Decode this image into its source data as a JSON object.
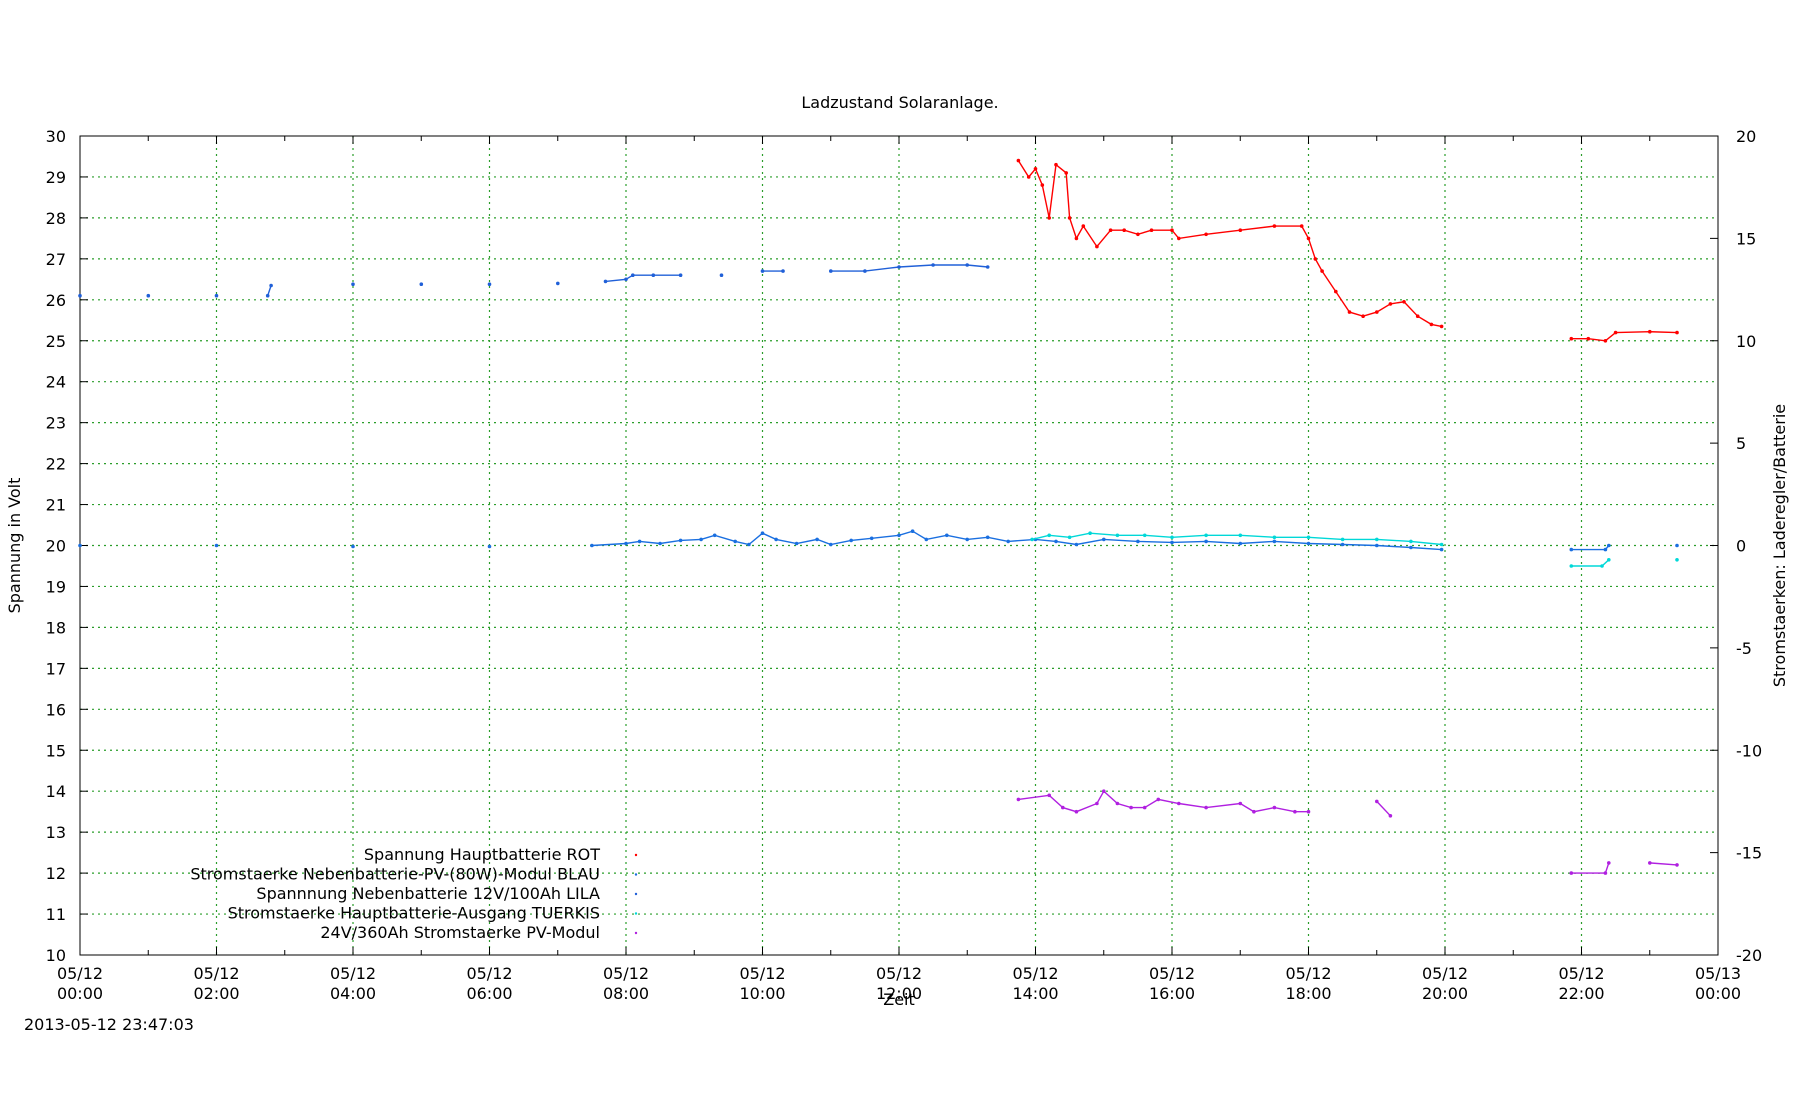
{
  "chart_data": {
    "type": "scatter",
    "title": "Ladzustand Solaranlage.",
    "xlabel": "Zeit",
    "ylabel": "Spannung in Volt",
    "y2label": "Stromstaerken: Laderegler/Batterie",
    "timestamp": "2013-05-12 23:47:03",
    "xlim": [
      0,
      24
    ],
    "ylim": [
      10,
      30
    ],
    "y2lim": [
      -20,
      20
    ],
    "grid": true,
    "legend_position": "bottom-left",
    "x_ticks": [
      {
        "pos": 0,
        "l1": "05/12",
        "l2": "00:00"
      },
      {
        "pos": 2,
        "l1": "05/12",
        "l2": "02:00"
      },
      {
        "pos": 4,
        "l1": "05/12",
        "l2": "04:00"
      },
      {
        "pos": 6,
        "l1": "05/12",
        "l2": "06:00"
      },
      {
        "pos": 8,
        "l1": "05/12",
        "l2": "08:00"
      },
      {
        "pos": 10,
        "l1": "05/12",
        "l2": "10:00"
      },
      {
        "pos": 12,
        "l1": "05/12",
        "l2": "12:00"
      },
      {
        "pos": 14,
        "l1": "05/12",
        "l2": "14:00"
      },
      {
        "pos": 16,
        "l1": "05/12",
        "l2": "16:00"
      },
      {
        "pos": 18,
        "l1": "05/12",
        "l2": "18:00"
      },
      {
        "pos": 20,
        "l1": "05/12",
        "l2": "20:00"
      },
      {
        "pos": 22,
        "l1": "05/12",
        "l2": "22:00"
      },
      {
        "pos": 24,
        "l1": "05/13",
        "l2": "00:00"
      }
    ],
    "y_ticks": [
      10,
      11,
      12,
      13,
      14,
      15,
      16,
      17,
      18,
      19,
      20,
      21,
      22,
      23,
      24,
      25,
      26,
      27,
      28,
      29,
      30
    ],
    "y2_ticks": [
      -20,
      -15,
      -10,
      -5,
      0,
      5,
      10,
      15,
      20
    ],
    "series": [
      {
        "name": "Spannung Hauptbatterie ROT",
        "color": "#ff0000",
        "axis": "y",
        "points": [
          [
            13.75,
            29.4
          ],
          [
            13.9,
            29.0
          ],
          [
            14.0,
            29.2
          ],
          [
            14.1,
            28.8
          ],
          [
            14.2,
            28.0
          ],
          [
            14.3,
            29.3
          ],
          [
            14.45,
            29.1
          ],
          [
            14.5,
            28.0
          ],
          [
            14.6,
            27.5
          ],
          [
            14.7,
            27.8
          ],
          [
            14.9,
            27.3
          ],
          [
            15.1,
            27.7
          ],
          [
            15.3,
            27.7
          ],
          [
            15.5,
            27.6
          ],
          [
            15.7,
            27.7
          ],
          [
            16.0,
            27.7
          ],
          [
            16.1,
            27.5
          ],
          [
            16.5,
            27.6
          ],
          [
            17.0,
            27.7
          ],
          [
            17.5,
            27.8
          ],
          [
            17.9,
            27.8
          ],
          [
            18.0,
            27.5
          ],
          [
            18.1,
            27.0
          ],
          [
            18.2,
            26.7
          ],
          [
            18.4,
            26.2
          ],
          [
            18.6,
            25.7
          ],
          [
            18.8,
            25.6
          ],
          [
            19.0,
            25.7
          ],
          [
            19.2,
            25.9
          ],
          [
            19.4,
            25.95
          ],
          [
            19.6,
            25.6
          ],
          [
            19.8,
            25.4
          ],
          [
            19.95,
            25.35
          ],
          [
            21.85,
            25.05
          ],
          [
            22.1,
            25.05
          ],
          [
            22.35,
            25.0
          ],
          [
            22.5,
            25.2
          ],
          [
            23.0,
            25.22
          ],
          [
            23.4,
            25.2
          ]
        ]
      },
      {
        "name": "Stromstaerke Nebenbatterie-PV-(80W)-Modul BLAU",
        "color": "#1a6fe0",
        "axis": "y2",
        "points": [
          [
            0.0,
            0.0
          ],
          [
            2.0,
            0.0
          ],
          [
            4.0,
            -0.05
          ],
          [
            6.0,
            -0.05
          ],
          [
            7.5,
            0.0
          ],
          [
            8.0,
            0.1
          ],
          [
            8.2,
            0.2
          ],
          [
            8.5,
            0.1
          ],
          [
            8.8,
            0.25
          ],
          [
            9.1,
            0.3
          ],
          [
            9.3,
            0.5
          ],
          [
            9.6,
            0.2
          ],
          [
            9.8,
            0.05
          ],
          [
            10.0,
            0.6
          ],
          [
            10.2,
            0.3
          ],
          [
            10.5,
            0.1
          ],
          [
            10.8,
            0.3
          ],
          [
            11.0,
            0.05
          ],
          [
            11.3,
            0.25
          ],
          [
            11.6,
            0.35
          ],
          [
            12.0,
            0.5
          ],
          [
            12.2,
            0.7
          ],
          [
            12.4,
            0.3
          ],
          [
            12.7,
            0.5
          ],
          [
            13.0,
            0.3
          ],
          [
            13.3,
            0.4
          ],
          [
            13.6,
            0.2
          ],
          [
            14.0,
            0.3
          ],
          [
            14.3,
            0.2
          ],
          [
            14.6,
            0.05
          ],
          [
            15.0,
            0.3
          ],
          [
            15.5,
            0.2
          ],
          [
            16.0,
            0.15
          ],
          [
            16.5,
            0.2
          ],
          [
            17.0,
            0.1
          ],
          [
            17.5,
            0.2
          ],
          [
            18.0,
            0.1
          ],
          [
            18.5,
            0.05
          ],
          [
            19.0,
            0.0
          ],
          [
            19.5,
            -0.1
          ],
          [
            19.95,
            -0.2
          ],
          [
            21.85,
            -0.2
          ],
          [
            22.35,
            -0.2
          ],
          [
            22.4,
            0.0
          ],
          [
            23.4,
            0.0
          ]
        ]
      },
      {
        "name": "Spannnung Nebenbatterie 12V/100Ah LILA",
        "color": "#2060d8",
        "axis": "y",
        "points": [
          [
            0.0,
            26.1
          ],
          [
            1.0,
            26.1
          ],
          [
            2.0,
            26.1
          ],
          [
            2.75,
            26.1
          ],
          [
            2.8,
            26.35
          ],
          [
            4.0,
            26.38
          ],
          [
            5.0,
            26.38
          ],
          [
            6.0,
            26.38
          ],
          [
            7.0,
            26.4
          ],
          [
            7.7,
            26.45
          ],
          [
            8.0,
            26.5
          ],
          [
            8.1,
            26.6
          ],
          [
            8.4,
            26.6
          ],
          [
            8.8,
            26.6
          ],
          [
            9.4,
            26.6
          ],
          [
            10.0,
            26.7
          ],
          [
            10.3,
            26.7
          ],
          [
            11.0,
            26.7
          ],
          [
            11.5,
            26.7
          ],
          [
            12.0,
            26.8
          ],
          [
            12.5,
            26.85
          ],
          [
            13.0,
            26.85
          ],
          [
            13.3,
            26.8
          ]
        ]
      },
      {
        "name": "Stromstaerke Hauptbatterie-Ausgang TUERKIS",
        "color": "#00d8d8",
        "axis": "y2",
        "points": [
          [
            13.95,
            0.3
          ],
          [
            14.2,
            0.5
          ],
          [
            14.5,
            0.4
          ],
          [
            14.8,
            0.6
          ],
          [
            15.2,
            0.5
          ],
          [
            15.6,
            0.5
          ],
          [
            16.0,
            0.4
          ],
          [
            16.5,
            0.5
          ],
          [
            17.0,
            0.5
          ],
          [
            17.5,
            0.4
          ],
          [
            18.0,
            0.4
          ],
          [
            18.5,
            0.3
          ],
          [
            19.0,
            0.3
          ],
          [
            19.5,
            0.2
          ],
          [
            19.95,
            0.05
          ],
          [
            21.85,
            -1.0
          ],
          [
            22.3,
            -1.0
          ],
          [
            22.4,
            -0.7
          ],
          [
            23.4,
            -0.7
          ]
        ]
      },
      {
        "name": "24V/360Ah Stromstaerke PV-Modul",
        "color": "#b020e0",
        "axis": "y",
        "points": [
          [
            13.75,
            13.8
          ],
          [
            14.2,
            13.9
          ],
          [
            14.4,
            13.6
          ],
          [
            14.6,
            13.5
          ],
          [
            14.9,
            13.7
          ],
          [
            15.0,
            14.0
          ],
          [
            15.2,
            13.7
          ],
          [
            15.4,
            13.6
          ],
          [
            15.6,
            13.6
          ],
          [
            15.8,
            13.8
          ],
          [
            16.1,
            13.7
          ],
          [
            16.5,
            13.6
          ],
          [
            17.0,
            13.7
          ],
          [
            17.2,
            13.5
          ],
          [
            17.5,
            13.6
          ],
          [
            17.8,
            13.5
          ],
          [
            18.0,
            13.5
          ],
          [
            19.0,
            13.75
          ],
          [
            19.2,
            13.4
          ],
          [
            21.85,
            12.0
          ],
          [
            22.35,
            12.0
          ],
          [
            22.4,
            12.25
          ],
          [
            23.0,
            12.25
          ],
          [
            23.4,
            12.2
          ]
        ]
      }
    ]
  }
}
